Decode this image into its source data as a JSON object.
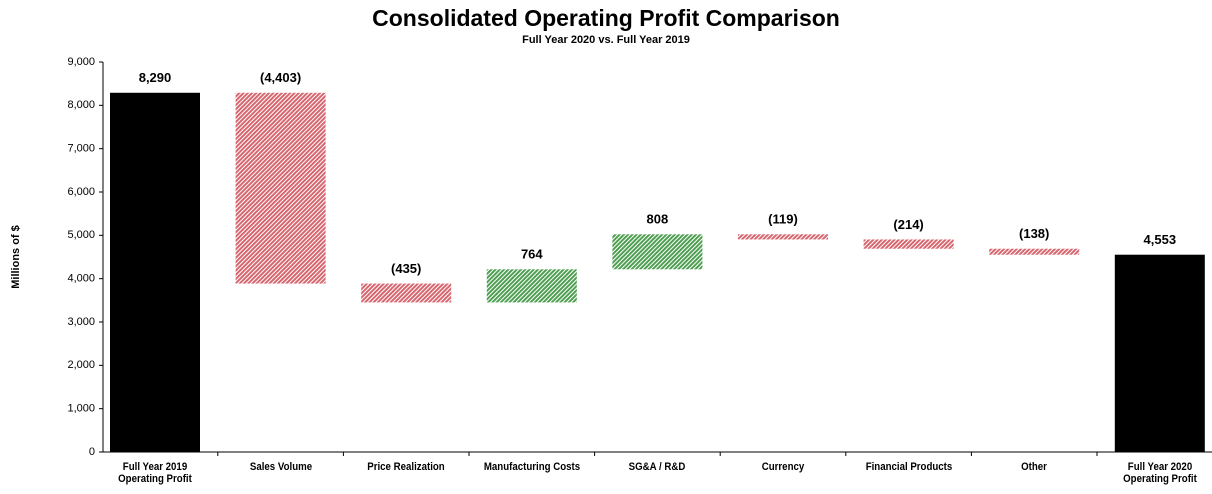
{
  "chart_data": {
    "type": "waterfall",
    "title": "Consolidated Operating Profit Comparison",
    "subtitle": "Full Year 2020 vs. Full Year 2019",
    "y_label": "Millions of $",
    "categories": [
      "Full Year 2019 Operating Profit",
      "Sales Volume",
      "Price Realization",
      "Manufacturing Costs",
      "SG&A / R&D",
      "Currency",
      "Financial  Products",
      "Other",
      "Full Year 2020 Operating Profit"
    ],
    "measures": [
      "absolute",
      "relative",
      "relative",
      "relative",
      "relative",
      "relative",
      "relative",
      "relative",
      "total"
    ],
    "values": [
      8290,
      -4403,
      -435,
      764,
      808,
      -119,
      -214,
      -138,
      4553
    ],
    "value_labels": [
      "8,290",
      "(4,403)",
      "(435)",
      "764",
      "808",
      "(119)",
      "(214)",
      "(138)",
      "4,553"
    ],
    "colors": {
      "total": "#000000",
      "increase": "#4f9f52",
      "decrease": "#d7666e"
    },
    "ylim": [
      0,
      9000
    ],
    "yticks": [
      0,
      {
        "value": 1000,
        "label": "1,000"
      },
      {
        "value": 2000,
        "label": "2,000"
      },
      {
        "value": 3000,
        "label": "3,000"
      },
      {
        "value": 4000,
        "label": "4,000"
      },
      {
        "value": 5000,
        "label": "5,000"
      },
      {
        "value": 6000,
        "label": "6,000"
      },
      {
        "value": 7000,
        "label": "7,000"
      },
      {
        "value": 8000,
        "label": "8,000"
      },
      {
        "value": 9000,
        "label": "9,000"
      }
    ]
  }
}
